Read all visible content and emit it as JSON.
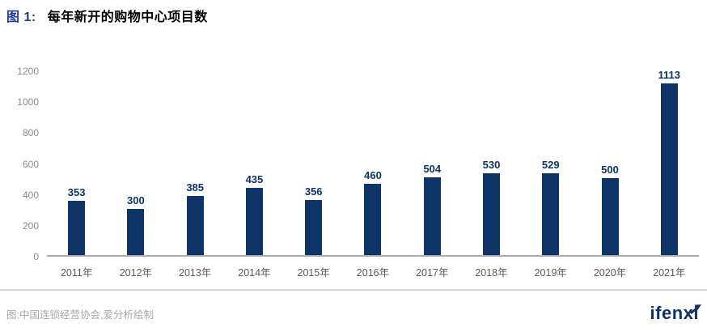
{
  "header": {
    "figure_label": "图 1:",
    "title": "每年新开的购物中心项目数"
  },
  "chart_data": {
    "type": "bar",
    "categories": [
      "2011年",
      "2012年",
      "2013年",
      "2014年",
      "2015年",
      "2016年",
      "2017年",
      "2018年",
      "2019年",
      "2020年",
      "2021年"
    ],
    "values": [
      353,
      300,
      385,
      435,
      356,
      460,
      504,
      530,
      529,
      500,
      1113
    ],
    "title": "每年新开的购物中心项目数",
    "xlabel": "",
    "ylabel": "",
    "ylim": [
      0,
      1200
    ],
    "yticks": [
      0,
      200,
      400,
      600,
      800,
      1000,
      1200
    ],
    "grid": false,
    "legend": false,
    "value_labels": true,
    "bar_color": "#0e3366"
  },
  "footer": {
    "source": "图:中国连锁经营协会,爱分析绘制",
    "brand": "ifenxi"
  },
  "colors": {
    "accent_navy": "#0e3366",
    "title_blue": "#1b3c94",
    "axis_gray": "#ababab",
    "tick_gray": "#8c8c8c",
    "xlabel_gray": "#595959",
    "source_gray": "#a8a8a8",
    "divider_gray": "#d4d4d4"
  }
}
